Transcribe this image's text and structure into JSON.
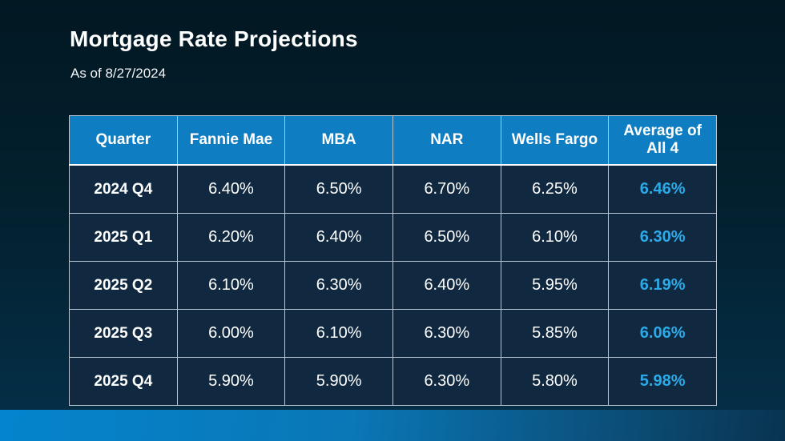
{
  "slide": {
    "title": "Mortgage Rate Projections",
    "subtitle": "As of 8/27/2024"
  },
  "colors": {
    "background_top": "#021823",
    "background_bottom": "#05304a",
    "header_blue": "#0f7dc2",
    "cell_background": "#102940",
    "accent_blue": "#2caae8",
    "cell_border": "#b9c6d2",
    "band_gradient_left": "#0484cd",
    "band_gradient_right": "#093350",
    "text_white": "#ffffff"
  },
  "table": {
    "headers": [
      "Quarter",
      "Fannie Mae",
      "MBA",
      "NAR",
      "Wells Fargo",
      "Average of All 4"
    ],
    "rows": [
      [
        "2024 Q4",
        "6.40%",
        "6.50%",
        "6.70%",
        "6.25%",
        "6.46%"
      ],
      [
        "2025 Q1",
        "6.20%",
        "6.40%",
        "6.50%",
        "6.10%",
        "6.30%"
      ],
      [
        "2025 Q2",
        "6.10%",
        "6.30%",
        "6.40%",
        "5.95%",
        "6.19%"
      ],
      [
        "2025 Q3",
        "6.00%",
        "6.10%",
        "6.30%",
        "5.85%",
        "6.06%"
      ],
      [
        "2025 Q4",
        "5.90%",
        "5.90%",
        "6.30%",
        "5.80%",
        "5.98%"
      ]
    ]
  },
  "chart_data": {
    "type": "table",
    "title": "Mortgage Rate Projections",
    "subtitle": "As of 8/27/2024",
    "categories": [
      "2024 Q4",
      "2025 Q1",
      "2025 Q2",
      "2025 Q3",
      "2025 Q4"
    ],
    "series": [
      {
        "name": "Fannie Mae",
        "values": [
          6.4,
          6.2,
          6.1,
          6.0,
          5.9
        ]
      },
      {
        "name": "MBA",
        "values": [
          6.5,
          6.4,
          6.3,
          6.1,
          5.9
        ]
      },
      {
        "name": "NAR",
        "values": [
          6.7,
          6.5,
          6.4,
          6.3,
          6.3
        ]
      },
      {
        "name": "Wells Fargo",
        "values": [
          6.25,
          6.1,
          5.95,
          5.85,
          5.8
        ]
      },
      {
        "name": "Average of All 4",
        "values": [
          6.46,
          6.3,
          6.19,
          6.06,
          5.98
        ]
      }
    ],
    "unit": "%",
    "notes": "Values shown as percentages; Average of All 4 column highlighted in blue"
  }
}
